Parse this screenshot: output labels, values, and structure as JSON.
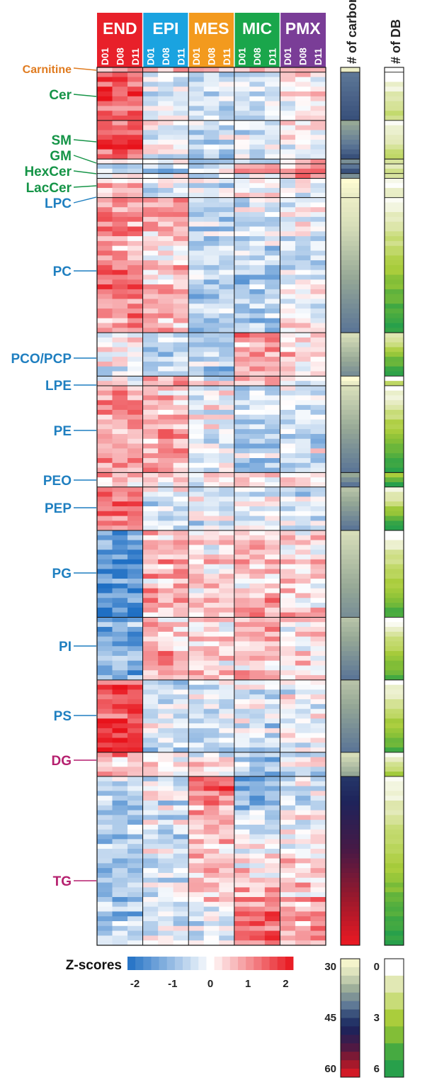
{
  "chart_data": {
    "type": "heatmap",
    "groups": [
      {
        "name": "END",
        "color": "#e8202a"
      },
      {
        "name": "EPI",
        "color": "#1aa3e0"
      },
      {
        "name": "MES",
        "color": "#f39a1e"
      },
      {
        "name": "MIC",
        "color": "#1aa64b"
      },
      {
        "name": "PMX",
        "color": "#7a3d97"
      }
    ],
    "timepoints": [
      "D01",
      "D08",
      "D11"
    ],
    "lipid_classes": [
      {
        "name": "Carnitine",
        "color": "#e07b1f",
        "rows": 1
      },
      {
        "name": "Cer",
        "color": "#159447",
        "rows": 10
      },
      {
        "name": "SM",
        "color": "#159447",
        "rows": 8
      },
      {
        "name": "GM",
        "color": "#159447",
        "rows": 1
      },
      {
        "name": "HexCer",
        "color": "#159447",
        "rows": 2
      },
      {
        "name": "LacCer",
        "color": "#159447",
        "rows": 1
      },
      {
        "name": "LPC",
        "color": "#1f7fc0",
        "rows": 4
      },
      {
        "name": "PC",
        "color": "#1f7fc0",
        "rows": 28
      },
      {
        "name": "PCO/PCP",
        "color": "#1f7fc0",
        "rows": 9
      },
      {
        "name": "LPE",
        "color": "#1f7fc0",
        "rows": 2
      },
      {
        "name": "PE",
        "color": "#1f7fc0",
        "rows": 18
      },
      {
        "name": "PEO",
        "color": "#1f7fc0",
        "rows": 3
      },
      {
        "name": "PEP",
        "color": "#1f7fc0",
        "rows": 9
      },
      {
        "name": "PG",
        "color": "#1f7fc0",
        "rows": 18
      },
      {
        "name": "PI",
        "color": "#1f7fc0",
        "rows": 13
      },
      {
        "name": "PS",
        "color": "#1f7fc0",
        "rows": 15
      },
      {
        "name": "DG",
        "color": "#b51f6e",
        "rows": 5
      },
      {
        "name": "TG",
        "color": "#b51f6e",
        "rows": 35
      }
    ],
    "annotation_columns": [
      "# of carbon",
      "# of DB"
    ],
    "zscore_legend": {
      "title": "Z-scores",
      "ticks": [
        "-2",
        "-1",
        "0",
        "1",
        "2"
      ],
      "range": [
        -2.2,
        2.2
      ]
    },
    "carbon_legend": {
      "ticks": [
        "30",
        "45",
        "60"
      ],
      "range": [
        30,
        60
      ]
    },
    "db_legend": {
      "ticks": [
        "0",
        "3",
        "6"
      ],
      "range": [
        0,
        6
      ]
    },
    "colors": {
      "zlow": "#1f6fc4",
      "zmid": "#ffffff",
      "zhigh": "#e8131b"
    }
  }
}
